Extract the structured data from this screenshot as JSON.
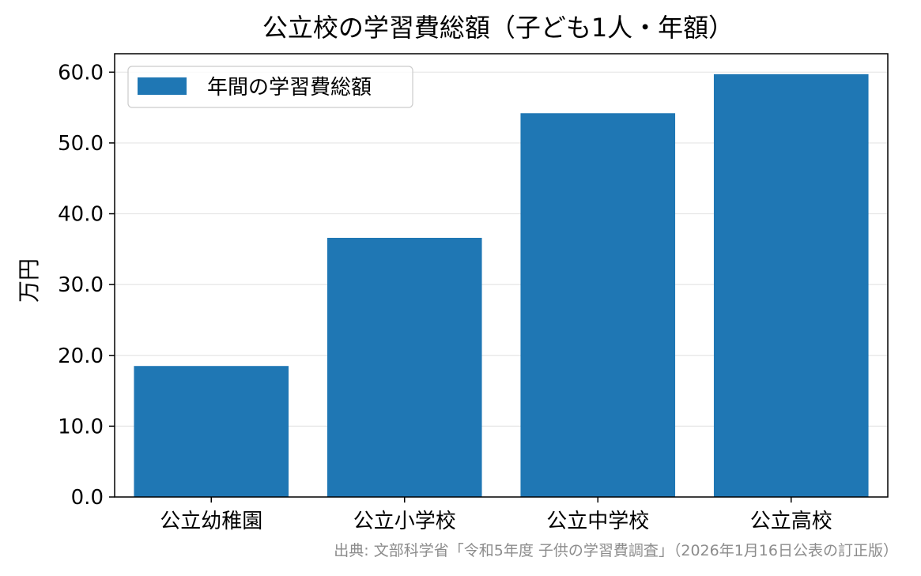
{
  "chart_data": {
    "type": "bar",
    "title": "公立校の学習費総額（子ども1人・年額）",
    "ylabel": "万円",
    "xlabel": "",
    "categories": [
      "公立幼稚園",
      "公立小学校",
      "公立中学校",
      "公立高校"
    ],
    "series": [
      {
        "name": "年間の学習費総額",
        "values": [
          18.5,
          36.6,
          54.2,
          59.7
        ],
        "color": "#1f77b4"
      }
    ],
    "yticks": [
      "0.0",
      "10.0",
      "20.0",
      "30.0",
      "40.0",
      "50.0",
      "60.0"
    ],
    "ylim": [
      0,
      62.6
    ],
    "grid": "y",
    "legend_position": "top-left"
  },
  "source_note": "出典: 文部科学省「令和5年度 子供の学習費調査」（2026年1月16日公表の訂正版）"
}
